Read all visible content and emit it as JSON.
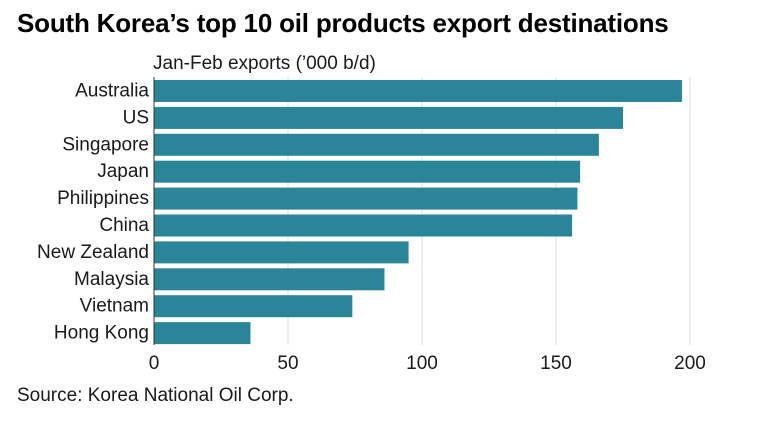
{
  "title": "South Korea’s top 10 oil products export destinations",
  "source": "Source: Korea National Oil Corp.",
  "colors": {
    "bar": "#2a8599",
    "grid": "#dddddd",
    "axis": "#333333"
  },
  "chart_data": {
    "type": "bar",
    "orientation": "horizontal",
    "title": "South Korea’s top 10 oil products export destinations",
    "subtitle": "Jan-Feb exports (’000 b/d)",
    "categories": [
      "Australia",
      "US",
      "Singapore",
      "Japan",
      "Philippines",
      "China",
      "New Zealand",
      "Malaysia",
      "Vietnam",
      "Hong Kong"
    ],
    "values": [
      197,
      175,
      166,
      159,
      158,
      156,
      95,
      86,
      74,
      36
    ],
    "xticks": [
      0,
      50,
      100,
      150,
      200
    ],
    "xlim": [
      0,
      200
    ],
    "grid": true
  }
}
